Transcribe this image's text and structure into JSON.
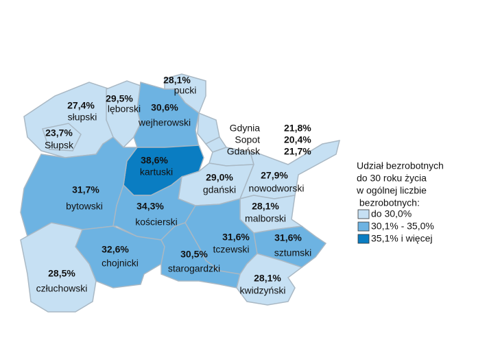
{
  "map": {
    "regions": [
      {
        "name": "słupski",
        "value": 27.4,
        "value_label": "27,4%"
      },
      {
        "name": "Słupsk",
        "value": 23.7,
        "value_label": "23,7%"
      },
      {
        "name": "pucki",
        "value": 28.1,
        "value_label": "28,1%"
      },
      {
        "name": "lęborski",
        "value": 29.5,
        "value_label": "29,5%"
      },
      {
        "name": "wejherowski",
        "value": 30.6,
        "value_label": "30,6%"
      },
      {
        "name": "Gdynia",
        "value": 21.8,
        "value_label": "21,8%"
      },
      {
        "name": "Sopot",
        "value": 20.4,
        "value_label": "20,4%"
      },
      {
        "name": "Gdańsk",
        "value": 21.7,
        "value_label": "21,7%"
      },
      {
        "name": "kartuski",
        "value": 38.6,
        "value_label": "38,6%"
      },
      {
        "name": "gdański",
        "value": 29.0,
        "value_label": "29,0%"
      },
      {
        "name": "nowodworski",
        "value": 27.9,
        "value_label": "27,9%"
      },
      {
        "name": "bytowski",
        "value": 31.7,
        "value_label": "31,7%"
      },
      {
        "name": "kościerski",
        "value": 34.3,
        "value_label": "34,3%"
      },
      {
        "name": "malborski",
        "value": 28.1,
        "value_label": "28,1%"
      },
      {
        "name": "chojnicki",
        "value": 32.6,
        "value_label": "32,6%"
      },
      {
        "name": "człuchowski",
        "value": 28.5,
        "value_label": "28,5%"
      },
      {
        "name": "tczewski",
        "value": 31.6,
        "value_label": "31,6%"
      },
      {
        "name": "sztumski",
        "value": 31.6,
        "value_label": "31,6%"
      },
      {
        "name": "starogardzki",
        "value": 30.5,
        "value_label": "30,5%"
      },
      {
        "name": "kwidzyński",
        "value": 28.1,
        "value_label": "28,1%"
      }
    ],
    "legend": {
      "title_lines": [
        "Udział bezrobotnych",
        "do 30 roku życia",
        "w ogólnej liczbie",
        " bezrobotnych:"
      ],
      "classes": [
        {
          "label": "do 30,0%",
          "to": 30.0,
          "color": "#c6e0f3"
        },
        {
          "label": "30,1% - 35,0%",
          "from": 30.1,
          "to": 35.0,
          "color": "#6db3e2"
        },
        {
          "label": "35,1% i więcej",
          "from": 35.1,
          "color": "#0a7dc2"
        }
      ]
    }
  }
}
